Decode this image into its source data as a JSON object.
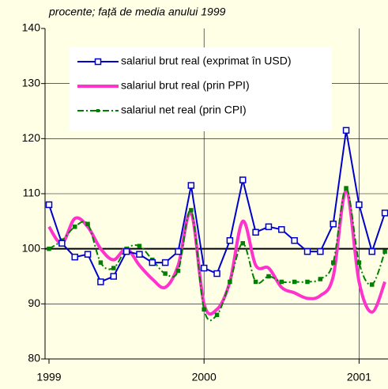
{
  "chart_data": {
    "type": "line",
    "subtitle": "procente; față de media anului 1999",
    "categories": [
      "1999",
      null,
      null,
      null,
      null,
      null,
      null,
      null,
      null,
      null,
      null,
      null,
      "2000",
      null,
      null,
      null,
      null,
      null,
      null,
      null,
      null,
      null,
      null,
      null,
      "2001",
      null,
      null
    ],
    "ylim": [
      80,
      140
    ],
    "yticks": [
      80,
      90,
      100,
      110,
      120,
      130,
      140
    ],
    "grid": true,
    "reference_line": 100,
    "series": [
      {
        "name": "salariul brut real (exprimat în USD)",
        "color": "#0000cc",
        "style": "solid",
        "marker": "hollow-square",
        "smooth": false,
        "values": [
          108,
          101,
          98.5,
          99,
          94,
          95,
          99.5,
          99,
          97.5,
          97.5,
          99.5,
          111.5,
          96.5,
          95.5,
          101.5,
          112.5,
          103,
          104,
          103.5,
          101.5,
          99.5,
          99.5,
          104.5,
          121.5,
          108,
          99.5,
          106.5
        ]
      },
      {
        "name": "salariul brut real (prin PPI)",
        "color": "#ff33cc",
        "style": "thick",
        "marker": "none",
        "smooth": true,
        "values": [
          104,
          101,
          105.5,
          104,
          100,
          98,
          100,
          97,
          94.5,
          93,
          97,
          106.5,
          90,
          89,
          94,
          105,
          97,
          96.5,
          93,
          92,
          91,
          91.5,
          95,
          110.5,
          94,
          88.5,
          94
        ]
      },
      {
        "name": "salariul net real (prin CPI)",
        "color": "#008000",
        "style": "dashdot",
        "marker": "small-square",
        "smooth": true,
        "values": [
          100,
          101.5,
          104,
          104.5,
          97.5,
          96.5,
          100,
          100.5,
          98,
          95.5,
          96,
          107,
          89,
          88,
          94,
          101,
          94,
          95,
          94,
          94,
          94,
          94.5,
          97.5,
          111,
          97.5,
          93.5,
          99.5
        ]
      }
    ]
  }
}
